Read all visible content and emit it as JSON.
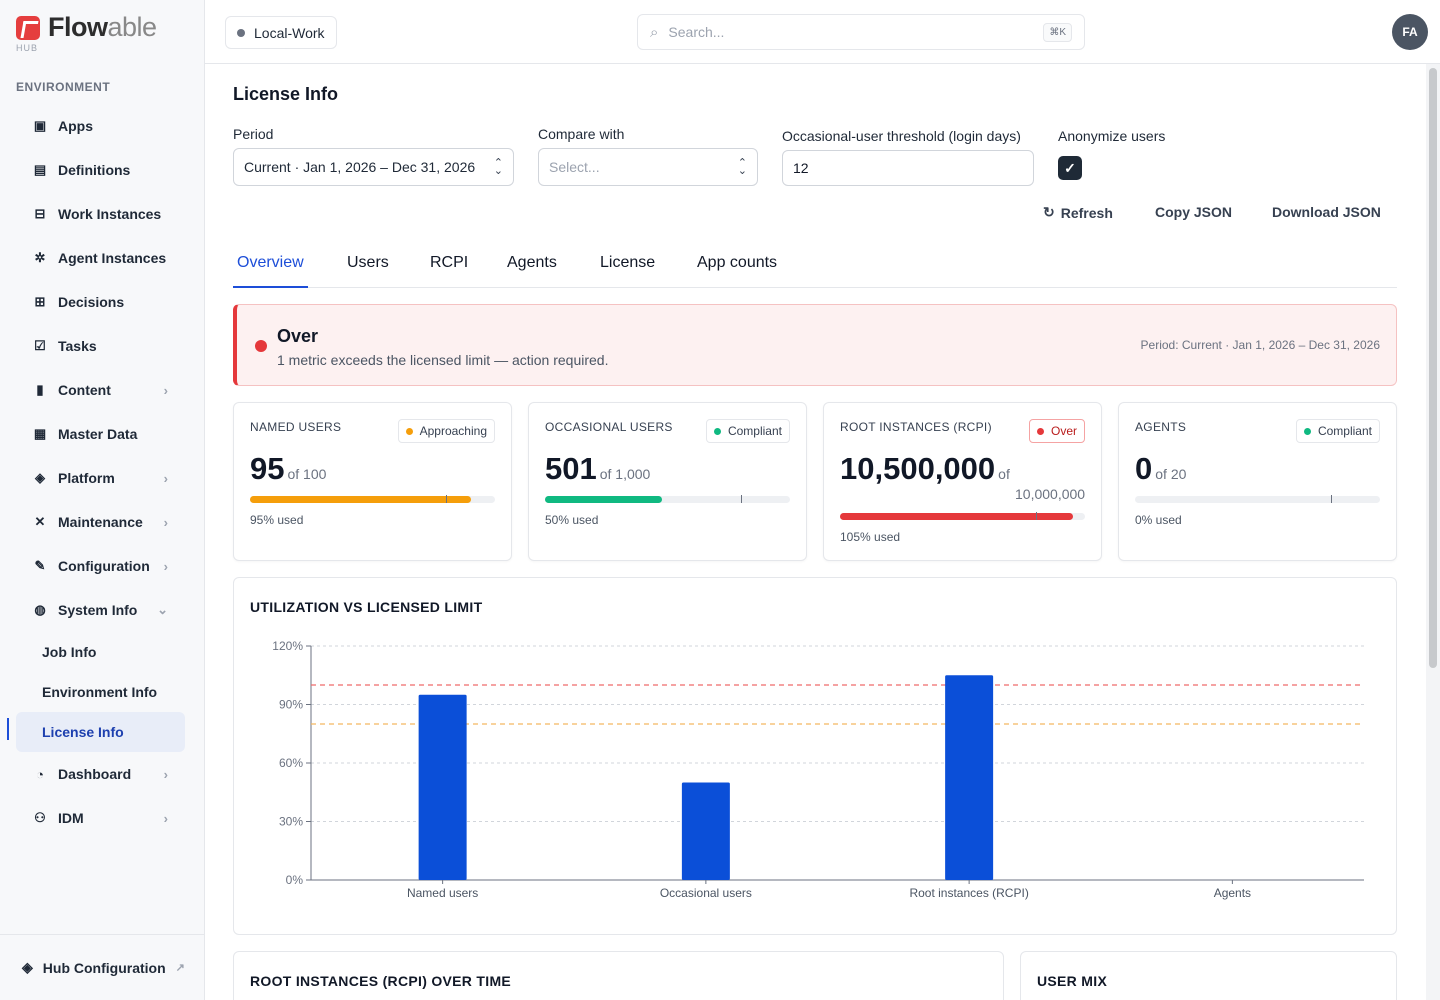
{
  "brand": {
    "name_bold": "Flow",
    "name_light": "able",
    "sub": "HUB"
  },
  "sidebar": {
    "section": "ENVIRONMENT",
    "items": [
      {
        "label": "Apps",
        "icon": "apps-icon",
        "glyph": "▣"
      },
      {
        "label": "Definitions",
        "icon": "definitions-icon",
        "glyph": "▤"
      },
      {
        "label": "Work Instances",
        "icon": "inbox-icon",
        "glyph": "⊟"
      },
      {
        "label": "Agent Instances",
        "icon": "chip-icon",
        "glyph": "✲"
      },
      {
        "label": "Decisions",
        "icon": "table-icon",
        "glyph": "⊞"
      },
      {
        "label": "Tasks",
        "icon": "clipboard-icon",
        "glyph": "☑"
      },
      {
        "label": "Content",
        "icon": "file-icon",
        "glyph": "▮",
        "chevron": "›"
      },
      {
        "label": "Master Data",
        "icon": "database-icon",
        "glyph": "▦"
      },
      {
        "label": "Platform",
        "icon": "cube-icon",
        "glyph": "◈",
        "chevron": "›"
      },
      {
        "label": "Maintenance",
        "icon": "tools-icon",
        "glyph": "✕",
        "chevron": "›"
      },
      {
        "label": "Configuration",
        "icon": "wrench-icon",
        "glyph": "✎",
        "chevron": "›"
      },
      {
        "label": "System Info",
        "icon": "globe-icon",
        "glyph": "◍",
        "chevron": "⌄"
      }
    ],
    "subitems": [
      {
        "label": "Job Info"
      },
      {
        "label": "Environment Info"
      },
      {
        "label": "License Info",
        "active": true
      }
    ],
    "items_after": [
      {
        "label": "Dashboard",
        "icon": "pie-chart-icon",
        "glyph": "◔",
        "chevron": "›"
      },
      {
        "label": "IDM",
        "icon": "users-icon",
        "glyph": "⚇",
        "chevron": "›"
      }
    ],
    "footer": {
      "label": "Hub Configuration",
      "glyph": "◈",
      "ext": "↗"
    }
  },
  "header": {
    "environment": "Local-Work",
    "search_placeholder": "Search...",
    "search_shortcut": "⌘K",
    "avatar": "FA"
  },
  "page": {
    "title": "License Info",
    "period_label": "Period",
    "period_value": "Current · Jan 1, 2026 – Dec 31, 2026",
    "compare_label": "Compare with",
    "compare_placeholder": "Select...",
    "threshold_label": "Occasional-user threshold (login days)",
    "threshold_value": "12",
    "anonymize_label": "Anonymize users",
    "anonymize_checked": true,
    "actions": {
      "refresh": "Refresh",
      "copy": "Copy JSON",
      "download": "Download JSON"
    },
    "tabs": [
      "Overview",
      "Users",
      "RCPI",
      "Agents",
      "License",
      "App counts"
    ],
    "active_tab": "Overview"
  },
  "alert": {
    "title": "Over",
    "message": "1 metric exceeds the licensed limit — action required.",
    "period": "Period: Current · Jan 1, 2026 – Dec 31, 2026",
    "color": "#e5383b"
  },
  "cards": [
    {
      "title": "NAMED USERS",
      "value": "95",
      "of": "of 100",
      "used": "95% used",
      "fraction": 0.95,
      "status": "Approaching",
      "status_color": "#f59e0b",
      "bar_color": "#f59e0b"
    },
    {
      "title": "OCCASIONAL USERS",
      "value": "501",
      "of": "of 1,000",
      "used": "50% used",
      "fraction": 0.501,
      "status": "Compliant",
      "status_color": "#10b981",
      "bar_color": "#10b981"
    },
    {
      "title": "ROOT INSTANCES (RCPI)",
      "value": "10,500,000",
      "of": "of",
      "of2": "10,000,000",
      "used": "105% used",
      "fraction": 1.0,
      "status": "Over",
      "status_color": "#e5383b",
      "bar_color": "#e5383b"
    },
    {
      "title": "AGENTS",
      "value": "0",
      "of": "of 20",
      "used": "0% used",
      "fraction": 0.0,
      "status": "Compliant",
      "status_color": "#10b981",
      "bar_color": "#10b981"
    }
  ],
  "chart_data": {
    "type": "bar",
    "title": "UTILIZATION VS LICENSED LIMIT",
    "categories": [
      "Named users",
      "Occasional users",
      "Root instances (RCPI)",
      "Agents"
    ],
    "values": [
      95,
      50,
      105,
      0
    ],
    "ylim": [
      0,
      120
    ],
    "yticks": [
      "0%",
      "30%",
      "60%",
      "90%",
      "120%"
    ],
    "ytick_values": [
      0,
      30,
      60,
      90,
      120
    ],
    "limit_line": 100,
    "warning_line": 80,
    "bar_color": "#0b4fd8",
    "limit_color": "#ef6b6b",
    "warning_color": "#f4b860",
    "grid": true
  },
  "bottom": {
    "rcpi_title": "ROOT INSTANCES (RCPI) OVER TIME",
    "mix_title": "USER MIX"
  }
}
